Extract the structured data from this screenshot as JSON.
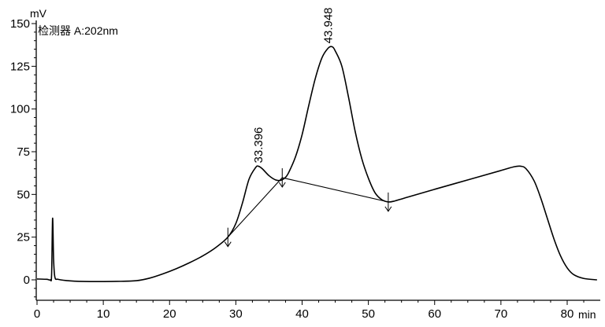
{
  "chart_data": {
    "type": "line",
    "y_unit": "mV",
    "x_unit": "min",
    "detector_label": "检测器 A:202nm",
    "xlim": [
      0,
      85
    ],
    "ylim": [
      -20,
      150
    ],
    "x_ticks": [
      0,
      10,
      20,
      30,
      40,
      50,
      60,
      70,
      80
    ],
    "y_ticks": [
      0,
      25,
      50,
      75,
      100,
      125,
      150
    ],
    "x_minor_step": 2.5,
    "y_minor_step": 5,
    "series": [
      {
        "points": [
          [
            0,
            0.5
          ],
          [
            1.5,
            0.3
          ],
          [
            2.0,
            0.0
          ],
          [
            2.2,
            3
          ],
          [
            2.35,
            36
          ],
          [
            2.5,
            12
          ],
          [
            2.7,
            1.5
          ],
          [
            3.2,
            0.3
          ],
          [
            5,
            -0.6
          ],
          [
            8,
            -1.0
          ],
          [
            12,
            -0.9
          ],
          [
            15,
            -0.5
          ],
          [
            17,
            1
          ],
          [
            19,
            3.5
          ],
          [
            21,
            6.5
          ],
          [
            23,
            10
          ],
          [
            25,
            14
          ],
          [
            27,
            19
          ],
          [
            28.8,
            25
          ],
          [
            30,
            33
          ],
          [
            31,
            45
          ],
          [
            32,
            59
          ],
          [
            33.0,
            65.8
          ],
          [
            33.4,
            66.5
          ],
          [
            34,
            65
          ],
          [
            35,
            61
          ],
          [
            36,
            58.5
          ],
          [
            36.8,
            58.3
          ],
          [
            37.5,
            60
          ],
          [
            38,
            63
          ],
          [
            39,
            72
          ],
          [
            40,
            85
          ],
          [
            41,
            102
          ],
          [
            42,
            118
          ],
          [
            43,
            130
          ],
          [
            43.9,
            135.5
          ],
          [
            44.5,
            136.5
          ],
          [
            45,
            134
          ],
          [
            46,
            125
          ],
          [
            47,
            107
          ],
          [
            48,
            87
          ],
          [
            49,
            71
          ],
          [
            50,
            59.5
          ],
          [
            51,
            51
          ],
          [
            52,
            47
          ],
          [
            53,
            45.6
          ],
          [
            54,
            46.2
          ],
          [
            56,
            48.5
          ],
          [
            60,
            53
          ],
          [
            65,
            58.5
          ],
          [
            70,
            64
          ],
          [
            72,
            66.2
          ],
          [
            73,
            66.5
          ],
          [
            73.8,
            65
          ],
          [
            75,
            58
          ],
          [
            76,
            48
          ],
          [
            77,
            36
          ],
          [
            78,
            24
          ],
          [
            79,
            14
          ],
          [
            80,
            7
          ],
          [
            81,
            3
          ],
          [
            82.5,
            0.8
          ],
          [
            84.5,
            0
          ]
        ]
      }
    ],
    "peak_labels": [
      {
        "x": 33.396,
        "y": 66.5,
        "label": "33.396"
      },
      {
        "x": 43.948,
        "y": 136.5,
        "label": "43.948"
      }
    ],
    "integration_baseline": [
      [
        28.8,
        25
      ],
      [
        37.0,
        59.8
      ],
      [
        53.0,
        45.6
      ]
    ],
    "integration_markers": [
      {
        "x": 28.8,
        "y": 25
      },
      {
        "x": 37.0,
        "y": 59.8
      },
      {
        "x": 53.0,
        "y": 45.6
      }
    ]
  }
}
